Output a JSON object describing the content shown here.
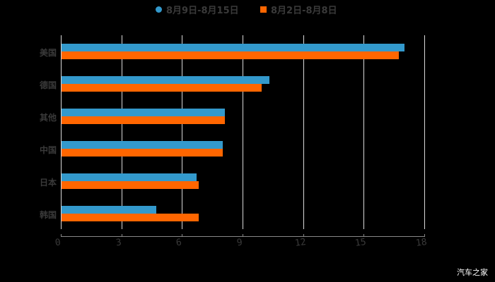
{
  "chart_data": {
    "type": "bar",
    "orientation": "horizontal",
    "title": "",
    "categories": [
      "美国",
      "德国",
      "其他",
      "中国",
      "日本",
      "韩国"
    ],
    "series": [
      {
        "name": "8月9日-8月15日",
        "color": "#3399cc",
        "values": [
          17.0,
          10.3,
          8.1,
          8.0,
          6.7,
          4.7
        ]
      },
      {
        "name": "8月2日-8月8日",
        "color": "#ff6600",
        "values": [
          16.7,
          9.9,
          8.1,
          8.0,
          6.8,
          6.8
        ]
      }
    ],
    "xlabel": "",
    "ylabel": "",
    "xlim": [
      0,
      18
    ],
    "xticks": [
      "0",
      "3",
      "6",
      "9",
      "12",
      "15",
      "18"
    ],
    "grid": true,
    "legend_position": "top"
  },
  "legend": {
    "items": [
      {
        "label": "8月9日-8月15日",
        "color": "#3399cc",
        "marker": "circle"
      },
      {
        "label": "8月2日-8月8日",
        "color": "#ff6600",
        "marker": "square"
      }
    ]
  },
  "watermark": "汽车之家"
}
